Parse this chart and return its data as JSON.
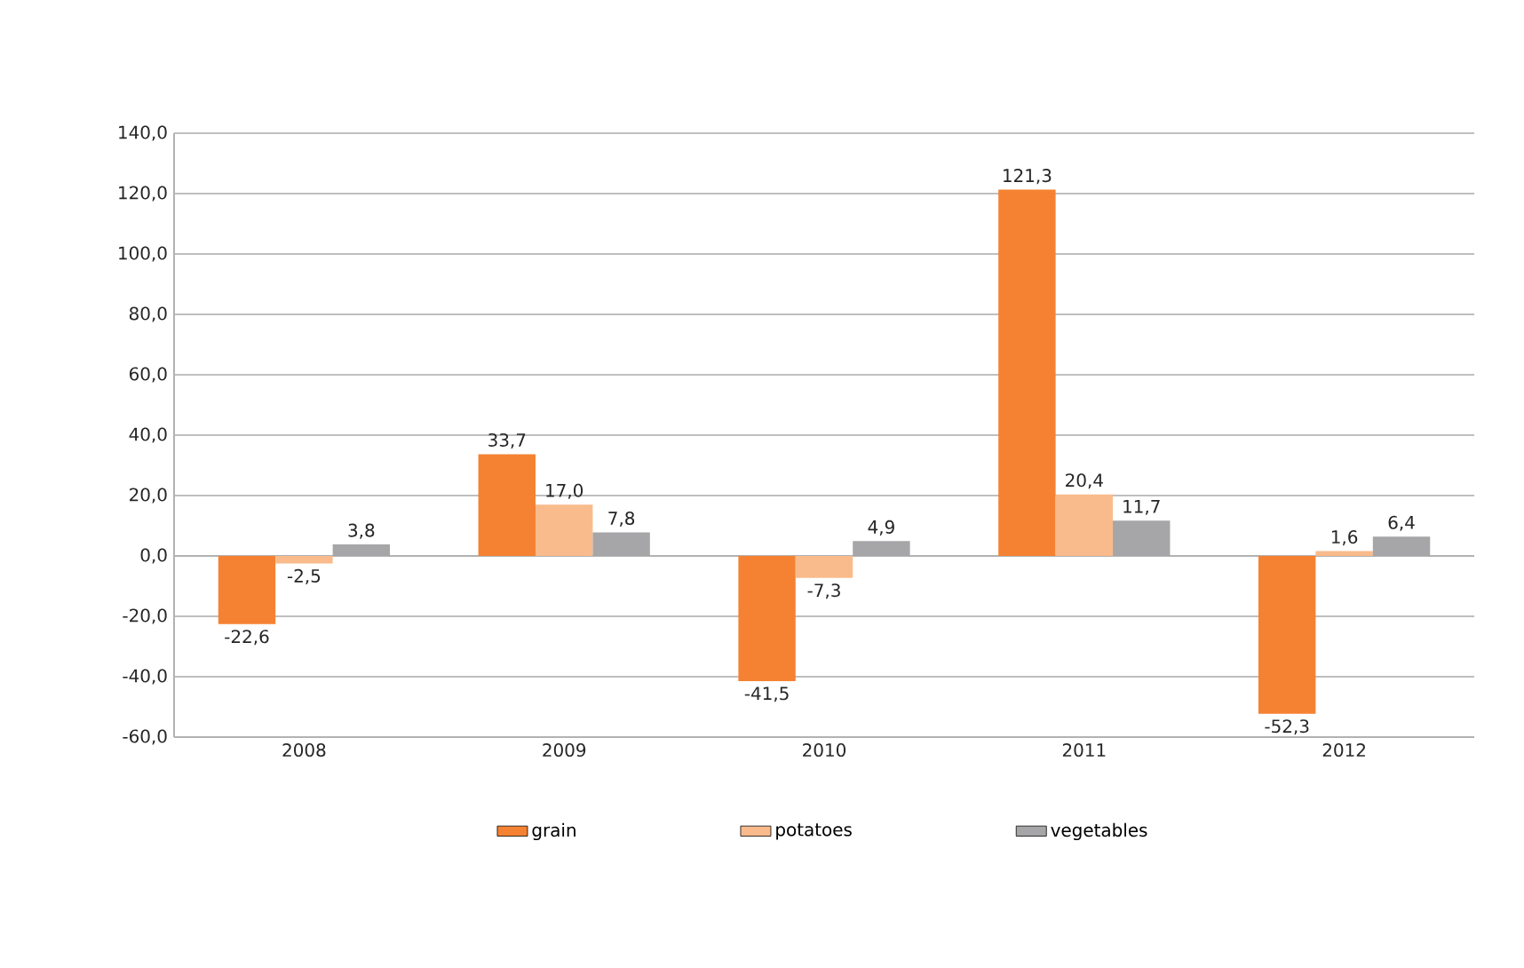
{
  "chart_data": {
    "type": "bar",
    "categories": [
      "2008",
      "2009",
      "2010",
      "2011",
      "2012"
    ],
    "series": [
      {
        "name": "grain",
        "color": "#f58232",
        "values": [
          -22.6,
          33.7,
          -41.5,
          121.3,
          -52.3
        ],
        "value_labels": [
          "-22,6",
          "33,7",
          "-41,5",
          "121,3",
          "-52,3"
        ]
      },
      {
        "name": "potatoes",
        "color": "#f9bb8b",
        "values": [
          -2.5,
          17.0,
          -7.3,
          20.4,
          1.6
        ],
        "value_labels": [
          "-2,5",
          "17,0",
          "-7,3",
          "20,4",
          "1,6"
        ]
      },
      {
        "name": "vegetables",
        "color": "#a6a6a8",
        "values": [
          3.8,
          7.8,
          4.9,
          11.7,
          6.4
        ],
        "value_labels": [
          "3,8",
          "7,8",
          "4,9",
          "11,7",
          "6,4"
        ]
      }
    ],
    "ylim": [
      -60,
      140
    ],
    "yticks": [
      {
        "value": -60,
        "label": "-60,0"
      },
      {
        "value": -40,
        "label": "-40,0"
      },
      {
        "value": -20,
        "label": "-20,0"
      },
      {
        "value": 0,
        "label": "0,0"
      },
      {
        "value": 20,
        "label": "20,0"
      },
      {
        "value": 40,
        "label": "40,0"
      },
      {
        "value": 60,
        "label": "60,0"
      },
      {
        "value": 80,
        "label": "80,0"
      },
      {
        "value": 100,
        "label": "100,0"
      },
      {
        "value": 120,
        "label": "120,0"
      },
      {
        "value": 140,
        "label": "140,0"
      }
    ],
    "grid": "y",
    "legend": "bottom"
  }
}
